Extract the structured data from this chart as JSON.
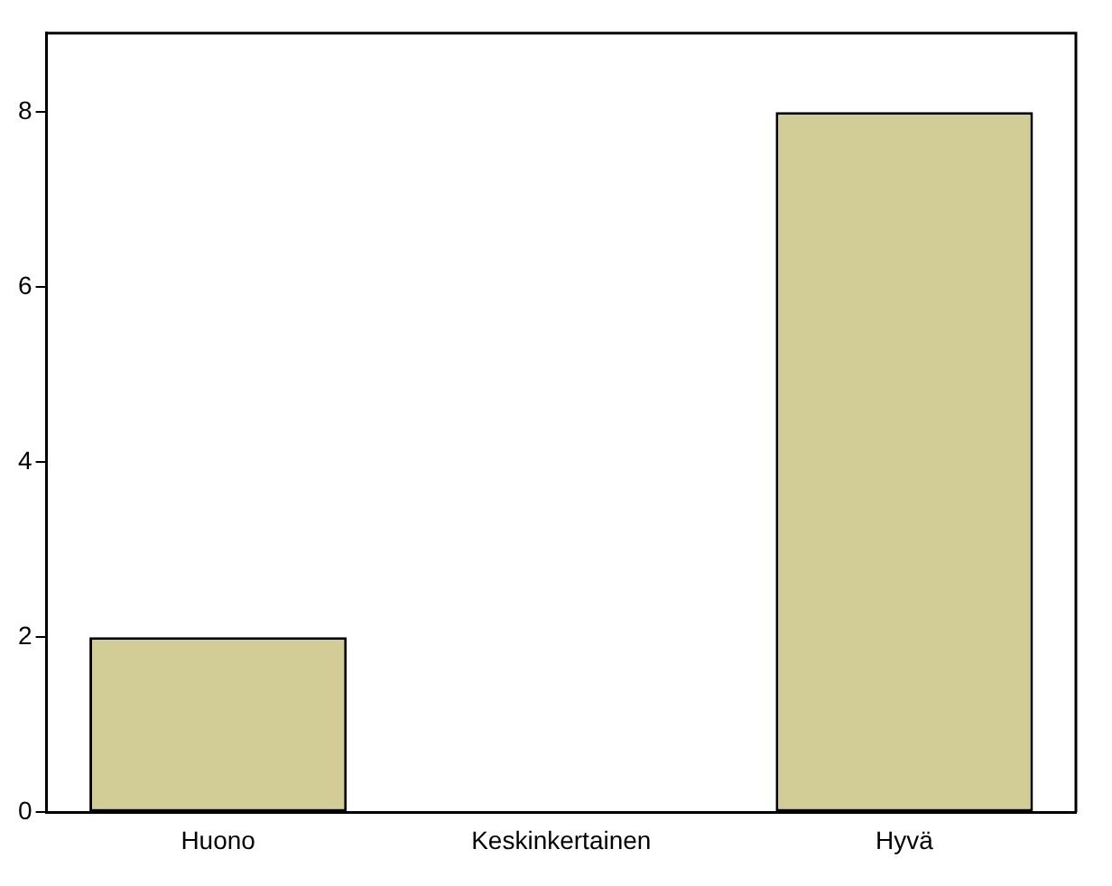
{
  "chart_data": {
    "type": "bar",
    "categories": [
      "Huono",
      "Keskinkertainen",
      "Hyvä"
    ],
    "values": [
      2,
      0,
      8
    ],
    "color": "#d2cc96",
    "ylim": [
      0,
      8.9
    ],
    "yticks": [
      0,
      2,
      4,
      6,
      8
    ],
    "grid": false,
    "legend": false
  }
}
